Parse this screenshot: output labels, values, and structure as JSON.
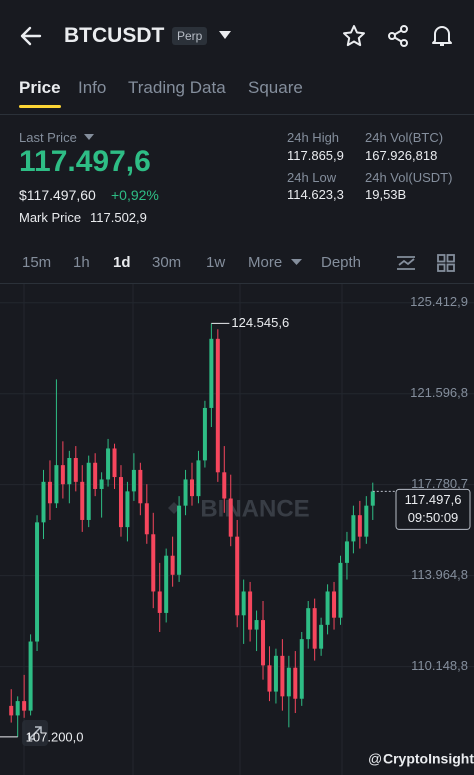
{
  "header": {
    "title": "BTCUSDT",
    "badge": "Perp"
  },
  "tabs": {
    "items": [
      "Price",
      "Info",
      "Trading Data",
      "Square"
    ],
    "active": 0
  },
  "stats": {
    "last_price_label": "Last Price",
    "last_price": "117.497,6",
    "usd_price": "$117.497,60",
    "change": "+0,92%",
    "mark_price_label": "Mark Price",
    "mark_price": "117.502,9",
    "high_label": "24h High",
    "high": "117.865,9",
    "low_label": "24h Low",
    "low": "114.623,3",
    "vol_btc_label": "24h Vol(BTC)",
    "vol_btc": "167.926,818",
    "vol_usdt_label": "24h Vol(USDT)",
    "vol_usdt": "19,53B"
  },
  "intervals": {
    "items": [
      "15m",
      "1h",
      "1d",
      "30m",
      "1w",
      "More",
      "Depth"
    ],
    "active": 2
  },
  "chart_data": {
    "type": "candlestick",
    "up_color": "#2ebd85",
    "down_color": "#f6465d",
    "grid": true,
    "ylim": [
      105600,
      126200
    ],
    "yticks": [
      {
        "value": 110148.8,
        "label": "110.148,8"
      },
      {
        "value": 113964.8,
        "label": "113.964,8"
      },
      {
        "value": 117780.7,
        "label": "117.780,7"
      },
      {
        "value": 121596.8,
        "label": "121.596,8"
      },
      {
        "value": 125412.9,
        "label": "125.412,9"
      }
    ],
    "max_label": {
      "value": 124545.6,
      "label": "124.545,6"
    },
    "min_label": {
      "value": 107200,
      "label": "107.200,0"
    },
    "last": {
      "value": 117497.6,
      "label": "117.497,6",
      "time": "09:50:09"
    },
    "watermark": "BINANCE",
    "ohlc": [
      [
        108500,
        109200,
        107800,
        108100
      ],
      [
        108100,
        108900,
        107200,
        108700
      ],
      [
        108700,
        109800,
        108000,
        108300
      ],
      [
        108300,
        111500,
        108100,
        111200
      ],
      [
        111200,
        116500,
        110800,
        116200
      ],
      [
        116200,
        118400,
        115500,
        117900
      ],
      [
        117900,
        118800,
        116300,
        117000
      ],
      [
        117000,
        122200,
        116800,
        118600
      ],
      [
        118600,
        119600,
        117200,
        117800
      ],
      [
        117800,
        119200,
        117000,
        118900
      ],
      [
        118900,
        119400,
        117500,
        117900
      ],
      [
        117900,
        118600,
        115800,
        116300
      ],
      [
        116300,
        119000,
        116000,
        118700
      ],
      [
        118700,
        119100,
        117300,
        117600
      ],
      [
        117600,
        118300,
        116400,
        118000
      ],
      [
        118000,
        119700,
        117700,
        119300
      ],
      [
        119300,
        119500,
        117600,
        118100
      ],
      [
        118100,
        118600,
        115600,
        116000
      ],
      [
        116000,
        117900,
        115400,
        117500
      ],
      [
        117500,
        119100,
        117100,
        118400
      ],
      [
        118400,
        118700,
        116500,
        117000
      ],
      [
        117000,
        117800,
        115300,
        115700
      ],
      [
        115700,
        116600,
        112600,
        113300
      ],
      [
        113300,
        114500,
        111600,
        112400
      ],
      [
        112400,
        115100,
        112000,
        114800
      ],
      [
        114800,
        115600,
        113500,
        114000
      ],
      [
        114000,
        117300,
        113700,
        116900
      ],
      [
        116900,
        118400,
        116500,
        118000
      ],
      [
        118000,
        118700,
        116900,
        117300
      ],
      [
        117300,
        119200,
        117000,
        118800
      ],
      [
        118800,
        121300,
        118500,
        121000
      ],
      [
        121000,
        124545.6,
        120200,
        123900
      ],
      [
        123900,
        124300,
        117900,
        118300
      ],
      [
        118300,
        119400,
        116600,
        117200
      ],
      [
        117200,
        118200,
        115200,
        115600
      ],
      [
        115600,
        116300,
        111800,
        112300
      ],
      [
        112300,
        113800,
        111100,
        113300
      ],
      [
        113300,
        113700,
        111200,
        111700
      ],
      [
        111700,
        112500,
        110800,
        112100
      ],
      [
        112100,
        112900,
        109600,
        110200
      ],
      [
        110200,
        111000,
        108700,
        109100
      ],
      [
        109100,
        110900,
        108600,
        110600
      ],
      [
        110600,
        111300,
        108300,
        108900
      ],
      [
        108900,
        110600,
        107600,
        110100
      ],
      [
        110100,
        110800,
        108200,
        108800
      ],
      [
        108800,
        111600,
        108500,
        111300
      ],
      [
        111300,
        112900,
        110900,
        112600
      ],
      [
        112600,
        113000,
        110400,
        110900
      ],
      [
        110900,
        112200,
        110600,
        111900
      ],
      [
        111900,
        113600,
        111500,
        113300
      ],
      [
        113300,
        113700,
        111700,
        112200
      ],
      [
        112200,
        114800,
        111900,
        114500
      ],
      [
        114500,
        115800,
        113800,
        115400
      ],
      [
        115400,
        116900,
        114900,
        116500
      ],
      [
        116500,
        117100,
        115100,
        115600
      ],
      [
        115600,
        117300,
        115300,
        116900
      ],
      [
        116900,
        117865.9,
        116300,
        117497.6
      ]
    ]
  },
  "footer": {
    "credit": "CryptoInsight"
  }
}
